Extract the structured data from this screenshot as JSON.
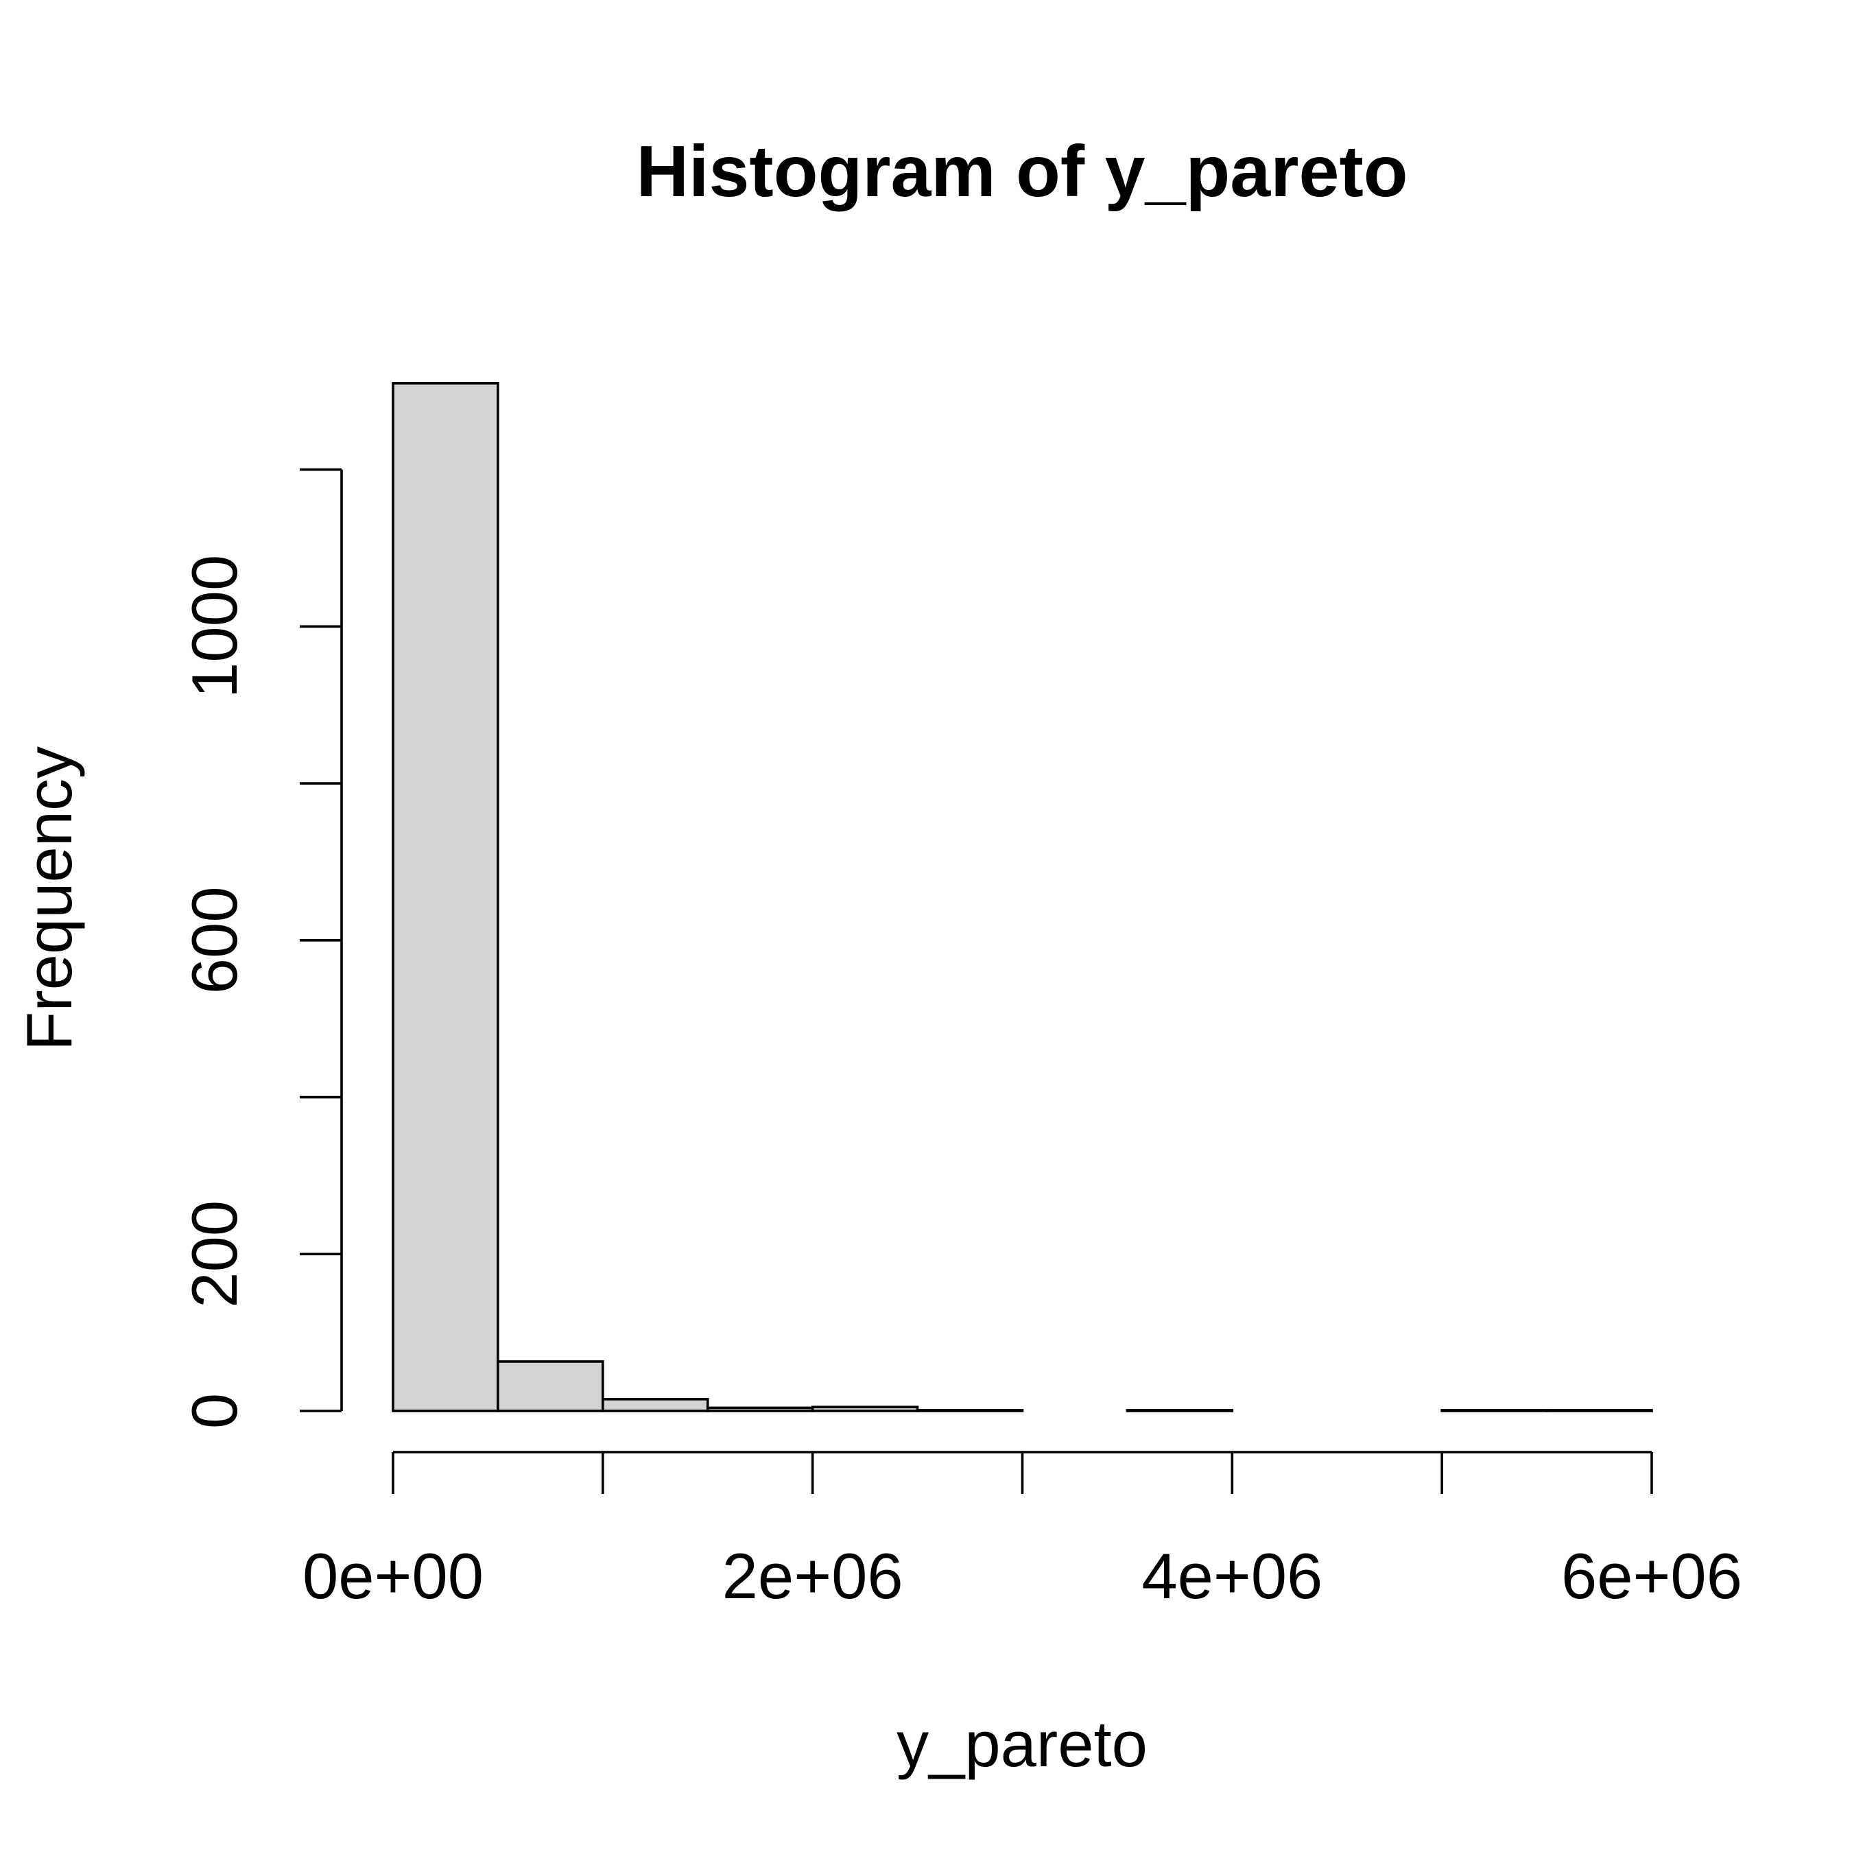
{
  "chart_data": {
    "type": "histogram",
    "title": "Histogram of y_pareto",
    "x_label": "y_pareto",
    "y_label": "Frequency",
    "bins": [
      0,
      500000,
      1000000,
      1500000,
      2000000,
      2500000,
      3000000,
      3500000,
      4000000,
      4500000,
      5000000,
      5500000,
      6000000
    ],
    "values": [
      1310,
      63,
      15,
      4,
      5,
      1,
      0,
      1,
      0,
      0,
      1,
      1
    ],
    "color": "#d3d3d3",
    "xlim": [
      0,
      6000000
    ],
    "xticks": [
      {
        "value": 0,
        "label": "0e+00"
      },
      {
        "value": 1000000,
        "label": null
      },
      {
        "value": 2000000,
        "label": "2e+06"
      },
      {
        "value": 3000000,
        "label": null
      },
      {
        "value": 4000000,
        "label": "4e+06"
      },
      {
        "value": 5000000,
        "label": null
      },
      {
        "value": 6000000,
        "label": "6e+06"
      }
    ],
    "ylim": [
      0,
      1310
    ],
    "yticks": [
      0,
      200,
      {
        "value": 400,
        "label": null
      },
      600,
      {
        "value": 800,
        "label": null
      },
      1000,
      {
        "value": 1200,
        "label": null
      }
    ]
  }
}
